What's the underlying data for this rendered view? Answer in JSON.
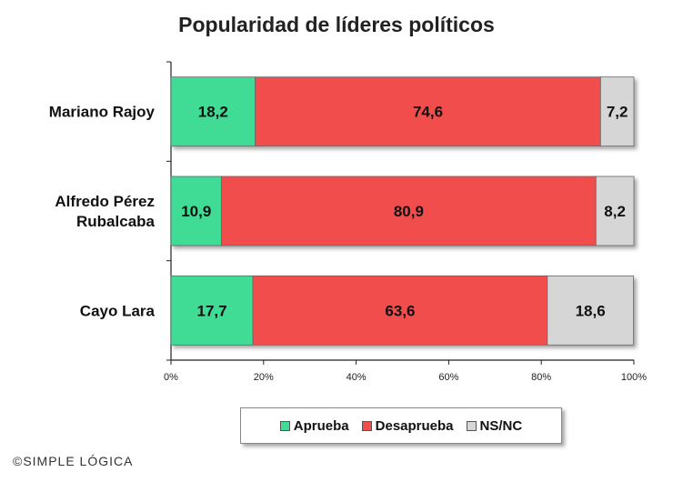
{
  "chart_data": {
    "type": "bar",
    "orientation": "horizontal",
    "stacked": "100%",
    "title": "Popularidad de líderes políticos",
    "categories": [
      "Mariano Rajoy",
      "Alfredo Pérez\nRubalcaba",
      "Cayo Lara"
    ],
    "series": [
      {
        "name": "Aprueba",
        "color": "#3fdc96",
        "values": [
          18.2,
          10.9,
          17.7
        ],
        "labels": [
          "18,2",
          "10,9",
          "17,7"
        ]
      },
      {
        "name": "Desaprueba",
        "color": "#f24e4e",
        "values": [
          74.6,
          80.9,
          63.6
        ],
        "labels": [
          "74,6",
          "80,9",
          "63,6"
        ]
      },
      {
        "name": "NS/NC",
        "color": "#d6d6d6",
        "values": [
          7.2,
          8.2,
          18.6
        ],
        "labels": [
          "7,2",
          "8,2",
          "18,6"
        ]
      }
    ],
    "x_ticks": [
      "0%",
      "20%",
      "40%",
      "60%",
      "80%",
      "100%"
    ],
    "xlim": [
      0,
      100
    ],
    "grid": false,
    "legend_position": "bottom"
  },
  "legend": {
    "items": [
      "Aprueba",
      "Desaprueba",
      "NS/NC"
    ]
  },
  "footer": {
    "copyright": "©SIMPLE LÓGICA"
  }
}
